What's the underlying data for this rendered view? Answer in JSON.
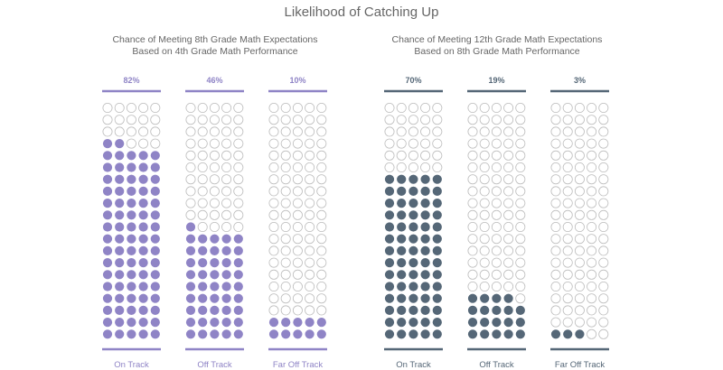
{
  "page": {
    "title": "Likelihood of Catching Up"
  },
  "chart_data": [
    {
      "type": "waffle",
      "subtitle_line1": "Chance of Meeting 8th Grade Math Expectations",
      "subtitle_line2": "Based on 4th Grade Math Performance",
      "color": "#8f84c6",
      "units_per_column": 100,
      "grid": {
        "columns": 5,
        "rows": 20
      },
      "categories": [
        "On Track",
        "Off Track",
        "Far Off Track"
      ],
      "values": [
        82,
        46,
        10
      ],
      "value_labels": [
        "82%",
        "46%",
        "10%"
      ]
    },
    {
      "type": "waffle",
      "subtitle_line1": "Chance of Meeting 12th Grade Math Expectations",
      "subtitle_line2": "Based on 8th Grade Math Performance",
      "color": "#556777",
      "units_per_column": 100,
      "grid": {
        "columns": 5,
        "rows": 20
      },
      "categories": [
        "On Track",
        "Off Track",
        "Far Off Track"
      ],
      "values": [
        70,
        19,
        3
      ],
      "value_labels": [
        "70%",
        "19%",
        "3%"
      ]
    }
  ]
}
